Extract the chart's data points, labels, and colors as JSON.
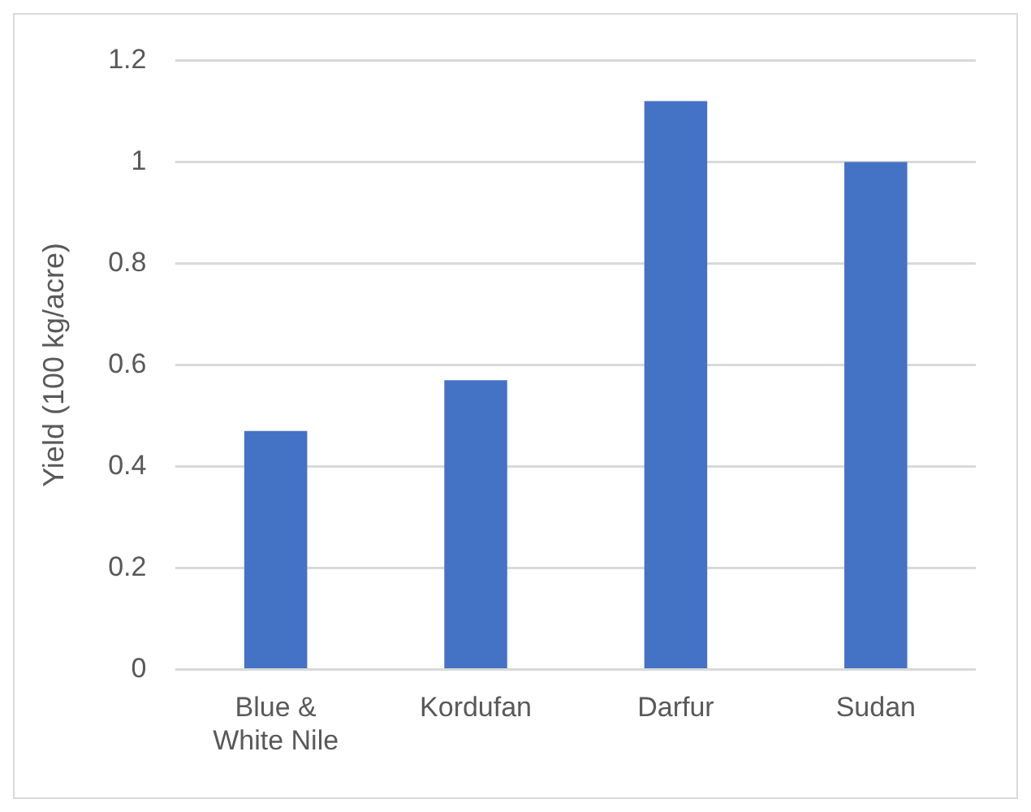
{
  "chart_data": {
    "type": "bar",
    "ylabel": "Yield (100 kg/acre)",
    "categories": [
      "Blue & White Nile",
      "Kordufan",
      "Darfur",
      "Sudan"
    ],
    "values": [
      0.47,
      0.57,
      1.12,
      1.0
    ],
    "color": "#4472c4",
    "ylim": [
      0,
      1.2
    ],
    "yticks": [
      0,
      0.2,
      0.4,
      0.6,
      0.8,
      1,
      1.2
    ],
    "grid": "y"
  }
}
